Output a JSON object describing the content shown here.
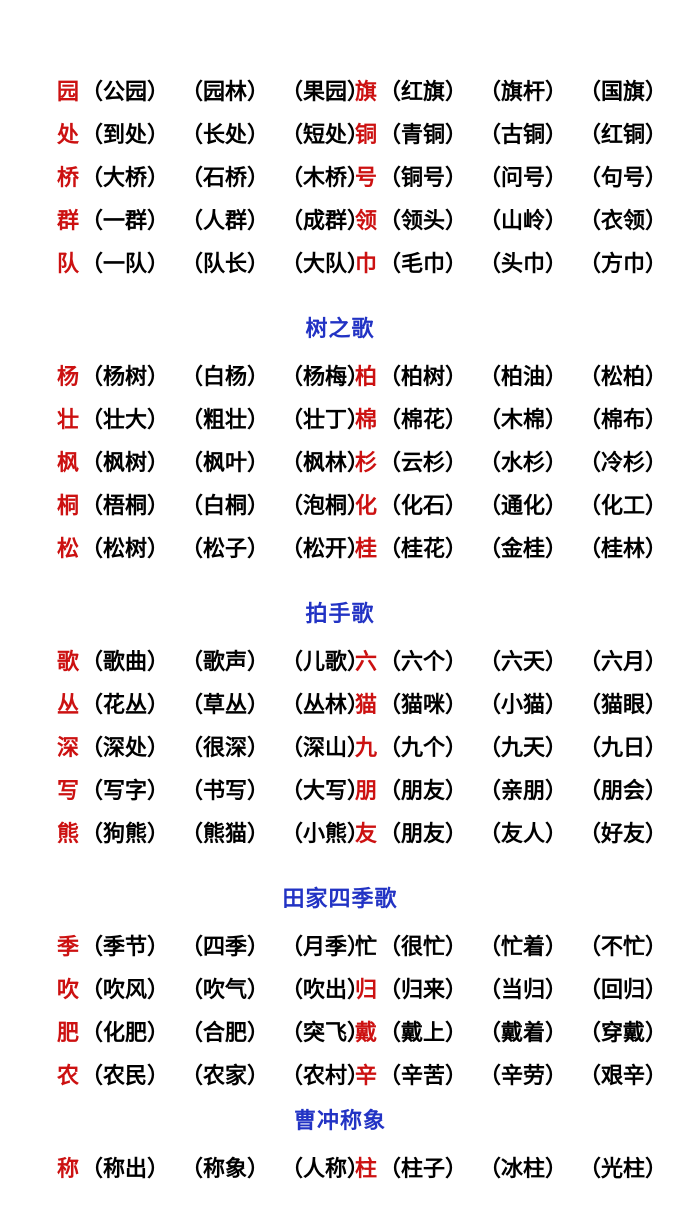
{
  "colors": {
    "head_char": "#cc1111",
    "word_text": "#000000",
    "section_title": "#2233c4",
    "page_background": "#ffffff"
  },
  "sections": [
    {
      "title": null,
      "rows": [
        {
          "left": {
            "char": "园",
            "words": [
              "（公园）",
              "（园林）",
              "（果园）"
            ]
          },
          "right": {
            "char": "旗",
            "words": [
              "（红旗）",
              "（旗杆）",
              "（国旗）"
            ]
          }
        },
        {
          "left": {
            "char": "处",
            "words": [
              "（到处）",
              "（长处）",
              "（短处）"
            ]
          },
          "right": {
            "char": "铜",
            "words": [
              "（青铜）",
              "（古铜）",
              "（红铜）"
            ]
          }
        },
        {
          "left": {
            "char": "桥",
            "words": [
              "（大桥）",
              "（石桥）",
              "（木桥）"
            ]
          },
          "right": {
            "char": "号",
            "words": [
              "（铜号）",
              "（问号）",
              "（句号）"
            ]
          }
        },
        {
          "left": {
            "char": "群",
            "words": [
              "（一群）",
              "（人群）",
              "（成群）"
            ]
          },
          "right": {
            "char": "领",
            "words": [
              "（领头）",
              "（山岭）",
              "（衣领）"
            ]
          }
        },
        {
          "left": {
            "char": "队",
            "words": [
              "（一队）",
              "（队长）",
              "（大队）"
            ]
          },
          "right": {
            "char": "巾",
            "words": [
              "（毛巾）",
              "（头巾）",
              "（方巾）"
            ]
          }
        }
      ]
    },
    {
      "title": "树之歌",
      "rows": [
        {
          "left": {
            "char": "杨",
            "words": [
              "（杨树）",
              "（白杨）",
              "（杨梅）"
            ]
          },
          "right": {
            "char": "柏",
            "words": [
              "（柏树）",
              "（柏油）",
              "（松柏）"
            ]
          }
        },
        {
          "left": {
            "char": "壮",
            "words": [
              "（壮大）",
              "（粗壮）",
              "（壮丁）"
            ]
          },
          "right": {
            "char": "棉",
            "words": [
              "（棉花）",
              "（木棉）",
              "（棉布）"
            ]
          }
        },
        {
          "left": {
            "char": "枫",
            "words": [
              "（枫树）",
              "（枫叶）",
              "（枫林）"
            ]
          },
          "right": {
            "char": "杉",
            "words": [
              "（云杉）",
              "（水杉）",
              "（冷杉）"
            ]
          }
        },
        {
          "left": {
            "char": "桐",
            "words": [
              "（梧桐）",
              "（白桐）",
              "（泡桐）"
            ]
          },
          "right": {
            "char": "化",
            "words": [
              "（化石）",
              "（通化）",
              "（化工）"
            ]
          }
        },
        {
          "left": {
            "char": "松",
            "words": [
              "（松树）",
              "（松子）",
              "（松开）"
            ]
          },
          "right": {
            "char": "桂",
            "words": [
              "（桂花）",
              "（金桂）",
              "（桂林）"
            ]
          }
        }
      ]
    },
    {
      "title": "拍手歌",
      "rows": [
        {
          "left": {
            "char": "歌",
            "words": [
              "（歌曲）",
              "（歌声）",
              "（儿歌）"
            ]
          },
          "right": {
            "char": "六",
            "words": [
              "（六个）",
              "（六天）",
              "（六月）"
            ]
          }
        },
        {
          "left": {
            "char": "丛",
            "words": [
              "（花丛）",
              "（草丛）",
              "（丛林）"
            ]
          },
          "right": {
            "char": "猫",
            "words": [
              "（猫咪）",
              "（小猫）",
              "（猫眼）"
            ]
          }
        },
        {
          "left": {
            "char": "深",
            "words": [
              "（深处）",
              "（很深）",
              "（深山）"
            ]
          },
          "right": {
            "char": "九",
            "words": [
              "（九个）",
              "（九天）",
              "（九日）"
            ]
          }
        },
        {
          "left": {
            "char": "写",
            "words": [
              "（写字）",
              "（书写）",
              "（大写）"
            ]
          },
          "right": {
            "char": "朋",
            "words": [
              "（朋友）",
              "（亲朋）",
              "（朋会）"
            ]
          }
        },
        {
          "left": {
            "char": "熊",
            "words": [
              "（狗熊）",
              "（熊猫）",
              "（小熊）"
            ]
          },
          "right": {
            "char": "友",
            "words": [
              "（朋友）",
              "（友人）",
              "（好友）"
            ]
          }
        }
      ]
    },
    {
      "title": "田家四季歌",
      "rows": [
        {
          "left": {
            "char": "季",
            "words": [
              "（季节）",
              "（四季）",
              "（月季）"
            ]
          },
          "right": {
            "char": "忙",
            "char_color": "#000000",
            "words": [
              "（很忙）",
              "（忙着）",
              "（不忙）"
            ]
          }
        },
        {
          "left": {
            "char": "吹",
            "words": [
              "（吹风）",
              "（吹气）",
              "（吹出）"
            ]
          },
          "right": {
            "char": "归",
            "words": [
              "（归来）",
              "（当归）",
              "（回归）"
            ]
          }
        },
        {
          "left": {
            "char": "肥",
            "words": [
              "（化肥）",
              "（合肥）",
              "（突飞）"
            ]
          },
          "right": {
            "char": "戴",
            "words": [
              "（戴上）",
              "（戴着）",
              "（穿戴）"
            ]
          }
        },
        {
          "left": {
            "char": "农",
            "words": [
              "（农民）",
              "（农家）",
              "（农村）"
            ]
          },
          "right": {
            "char": "辛",
            "words": [
              "（辛苦）",
              "（辛劳）",
              "（艰辛）"
            ]
          }
        }
      ]
    },
    {
      "title": "曹冲称象",
      "rows": [
        {
          "left": {
            "char": "称",
            "words": [
              "（称出）",
              "（称象）",
              "（人称）"
            ]
          },
          "right": {
            "char": "柱",
            "words": [
              "（柱子）",
              "（冰柱）",
              "（光柱）"
            ]
          }
        }
      ]
    }
  ]
}
